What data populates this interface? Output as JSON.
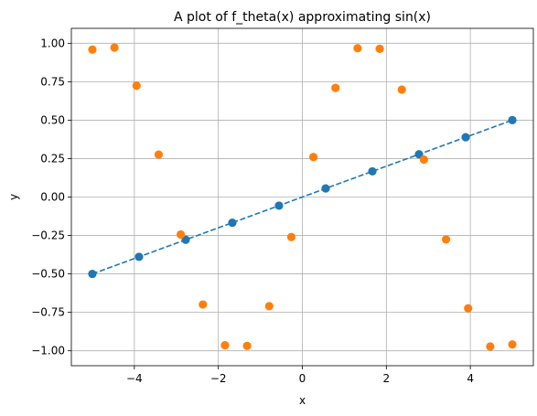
{
  "chart_data": {
    "type": "scatter",
    "title": "A plot of f_theta(x) approximating sin(x)",
    "xlabel": "x",
    "ylabel": "y",
    "xlim": [
      -5.5,
      5.5
    ],
    "ylim": [
      -1.0971,
      1.0971
    ],
    "grid": true,
    "x_ticks": [
      -4,
      -2,
      0,
      2,
      4
    ],
    "x_tick_labels": [
      "−4",
      "−2",
      "0",
      "2",
      "4"
    ],
    "y_ticks": [
      1.0,
      0.75,
      0.5,
      0.25,
      0.0,
      -0.25,
      -0.5,
      -0.75,
      -1.0
    ],
    "y_tick_labels": [
      "1.00",
      "0.75",
      "0.50",
      "0.25",
      "0.00",
      "−0.25",
      "−0.50",
      "−0.75",
      "−1.00"
    ],
    "series": [
      {
        "type": "line",
        "style": "dashed",
        "color": "#1f77b4",
        "x": [
          -5,
          -3.889,
          -2.778,
          -1.667,
          -0.556,
          0.556,
          1.667,
          2.778,
          3.889,
          5
        ],
        "y": [
          -0.5,
          -0.389,
          -0.278,
          -0.167,
          -0.056,
          0.056,
          0.167,
          0.278,
          0.389,
          0.5
        ]
      },
      {
        "type": "scatter",
        "color": "#1f77b4",
        "x": [
          -5,
          -3.889,
          -2.778,
          -1.667,
          -0.556,
          0.556,
          1.667,
          2.778,
          3.889,
          5
        ],
        "y": [
          -0.5,
          -0.389,
          -0.278,
          -0.167,
          -0.056,
          0.056,
          0.167,
          0.278,
          0.389,
          0.5
        ]
      },
      {
        "type": "scatter",
        "color": "#ff7f0e",
        "x": [
          -5,
          -4.474,
          -3.947,
          -3.421,
          -2.895,
          -2.368,
          -1.842,
          -1.316,
          -0.789,
          -0.263,
          0.263,
          0.789,
          1.316,
          1.842,
          2.368,
          2.895,
          3.421,
          3.947,
          4.474,
          5
        ],
        "y": [
          0.959,
          0.972,
          0.724,
          0.276,
          -0.244,
          -0.699,
          -0.964,
          -0.968,
          -0.71,
          -0.26,
          0.26,
          0.71,
          0.968,
          0.964,
          0.699,
          0.244,
          -0.276,
          -0.724,
          -0.972,
          -0.959
        ]
      }
    ]
  }
}
